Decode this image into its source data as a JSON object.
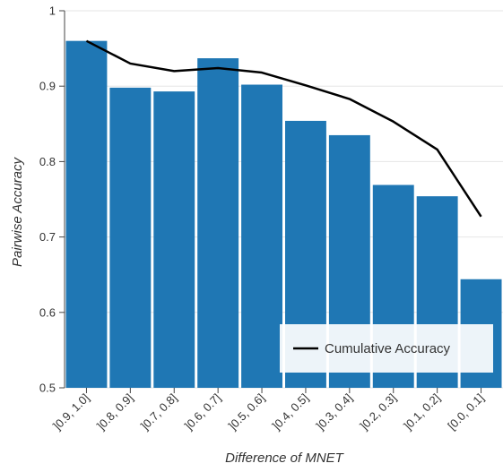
{
  "chart_data": {
    "type": "bar",
    "title": "",
    "xlabel": "Difference of MNET",
    "ylabel": "Pairwise Accuracy",
    "categories": [
      "]0.9, 1.0]",
      "]0.8, 0.9]",
      "]0.7, 0.8]",
      "]0.6, 0.7]",
      "]0.5, 0.6]",
      "]0.4, 0.5]",
      "]0.3, 0.4]",
      "]0.2, 0.3]",
      "]0.1, 0.2]",
      "[0.0, 0.1]"
    ],
    "series": [
      {
        "type": "bar",
        "values": [
          0.96,
          0.898,
          0.893,
          0.937,
          0.902,
          0.854,
          0.835,
          0.769,
          0.754,
          0.644
        ]
      },
      {
        "name": "Cumulative Accuracy",
        "type": "line",
        "values": [
          0.96,
          0.93,
          0.92,
          0.924,
          0.918,
          0.901,
          0.883,
          0.853,
          0.816,
          0.727
        ]
      }
    ],
    "ylim": [
      0.5,
      1.0
    ],
    "yticks": [
      "0.5",
      "0.6",
      "0.7",
      "0.8",
      "0.9",
      "1"
    ],
    "grid": true,
    "legend_position": "bottom-right",
    "colors": {
      "bar": "#1f77b4",
      "line": "#000000",
      "grid": "#e6e6e6",
      "axis": "#444444"
    }
  }
}
